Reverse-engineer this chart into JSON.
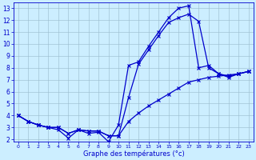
{
  "xlabel": "Graphe des températures (°c)",
  "bg_color": "#cceeff",
  "line_color": "#0000cc",
  "grid_color": "#99bbcc",
  "xlim": [
    -0.5,
    23.5
  ],
  "ylim": [
    1.8,
    13.5
  ],
  "xticks": [
    0,
    1,
    2,
    3,
    4,
    5,
    6,
    7,
    8,
    9,
    10,
    11,
    12,
    13,
    14,
    15,
    16,
    17,
    18,
    19,
    20,
    21,
    22,
    23
  ],
  "yticks": [
    2,
    3,
    4,
    5,
    6,
    7,
    8,
    9,
    10,
    11,
    12,
    13
  ],
  "line1": {
    "x": [
      0,
      1,
      2,
      3,
      4,
      5,
      6,
      7,
      8,
      9,
      10,
      11,
      12,
      13,
      14,
      15,
      16,
      17,
      18,
      19,
      20,
      21,
      22,
      23
    ],
    "y": [
      4.0,
      3.5,
      3.2,
      3.0,
      2.8,
      2.1,
      2.8,
      2.5,
      2.6,
      1.8,
      3.2,
      8.2,
      8.5,
      9.8,
      11.0,
      12.2,
      13.0,
      13.2,
      8.0,
      8.2,
      7.5,
      7.2,
      7.5,
      7.7
    ]
  },
  "line2": {
    "x": [
      0,
      1,
      2,
      3,
      4,
      5,
      6,
      7,
      8,
      9,
      10,
      11,
      12,
      13,
      14,
      15,
      16,
      17,
      18,
      19,
      20,
      21,
      22,
      23
    ],
    "y": [
      4.0,
      3.5,
      3.2,
      3.0,
      3.0,
      2.5,
      2.8,
      2.7,
      2.7,
      2.3,
      2.3,
      5.5,
      8.3,
      9.5,
      10.7,
      11.8,
      12.2,
      12.5,
      11.9,
      8.0,
      7.5,
      7.3,
      7.5,
      7.7
    ]
  },
  "line3": {
    "x": [
      0,
      1,
      2,
      3,
      4,
      5,
      6,
      7,
      8,
      9,
      10,
      11,
      12,
      13,
      14,
      15,
      16,
      17,
      18,
      19,
      20,
      21,
      22,
      23
    ],
    "y": [
      4.0,
      3.5,
      3.2,
      3.0,
      3.0,
      2.5,
      2.8,
      2.7,
      2.7,
      2.3,
      2.3,
      3.5,
      4.2,
      4.8,
      5.3,
      5.8,
      6.3,
      6.8,
      7.0,
      7.2,
      7.3,
      7.4,
      7.5,
      7.7
    ]
  },
  "tick_x_fontsize": 4.5,
  "tick_y_fontsize": 5.5,
  "xlabel_fontsize": 6.0
}
